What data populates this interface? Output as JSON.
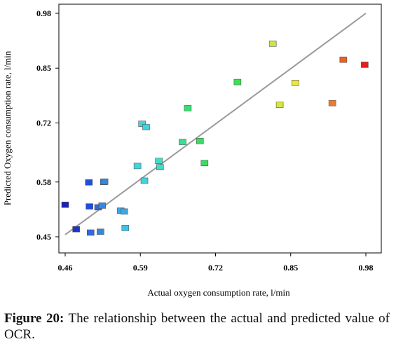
{
  "chart_data": {
    "type": "scatter",
    "xlabel": "Actual oxygen consumption rate, l/min",
    "ylabel": "Predicted  Oxygen consumption rate, l/min",
    "xlim": [
      0.46,
      0.98
    ],
    "ylim": [
      0.45,
      0.98
    ],
    "x_ticks": [
      "0.46",
      "0.59",
      "0.72",
      "0.85",
      "0.98"
    ],
    "y_ticks": [
      "0.45",
      "0.58",
      "0.72",
      "0.85",
      "0.98"
    ],
    "grid": false,
    "fit_line": {
      "x": [
        0.46,
        0.98
      ],
      "y": [
        0.455,
        0.98
      ]
    },
    "points": [
      {
        "x": 0.46,
        "y": 0.526,
        "color": "#1f1fb8"
      },
      {
        "x": 0.479,
        "y": 0.468,
        "color": "#1f35c8"
      },
      {
        "x": 0.501,
        "y": 0.579,
        "color": "#1f4fd8"
      },
      {
        "x": 0.502,
        "y": 0.522,
        "color": "#1f4fd8"
      },
      {
        "x": 0.504,
        "y": 0.46,
        "color": "#2e6ae0"
      },
      {
        "x": 0.517,
        "y": 0.52,
        "color": "#2e6ae0"
      },
      {
        "x": 0.521,
        "y": 0.462,
        "color": "#2e8ae6"
      },
      {
        "x": 0.524,
        "y": 0.524,
        "color": "#2e8ae6"
      },
      {
        "x": 0.527,
        "y": 0.58,
        "color": "#2e8ae6"
      },
      {
        "x": 0.528,
        "y": 0.581,
        "color": "#2e8ae6"
      },
      {
        "x": 0.556,
        "y": 0.512,
        "color": "#39a9e8"
      },
      {
        "x": 0.562,
        "y": 0.51,
        "color": "#39a9e8"
      },
      {
        "x": 0.564,
        "y": 0.471,
        "color": "#39c4e8"
      },
      {
        "x": 0.585,
        "y": 0.618,
        "color": "#3cd6e0"
      },
      {
        "x": 0.593,
        "y": 0.718,
        "color": "#3cd6e0"
      },
      {
        "x": 0.597,
        "y": 0.583,
        "color": "#3cd6e0"
      },
      {
        "x": 0.6,
        "y": 0.71,
        "color": "#3cd6e0"
      },
      {
        "x": 0.622,
        "y": 0.63,
        "color": "#3ce0c8"
      },
      {
        "x": 0.624,
        "y": 0.615,
        "color": "#3ce0c8"
      },
      {
        "x": 0.663,
        "y": 0.675,
        "color": "#35e090"
      },
      {
        "x": 0.672,
        "y": 0.755,
        "color": "#35e070"
      },
      {
        "x": 0.693,
        "y": 0.677,
        "color": "#35e060"
      },
      {
        "x": 0.701,
        "y": 0.625,
        "color": "#35e060"
      },
      {
        "x": 0.758,
        "y": 0.817,
        "color": "#3ce050"
      },
      {
        "x": 0.819,
        "y": 0.908,
        "color": "#c8e840"
      },
      {
        "x": 0.831,
        "y": 0.763,
        "color": "#d6e840"
      },
      {
        "x": 0.858,
        "y": 0.815,
        "color": "#e8e840"
      },
      {
        "x": 0.922,
        "y": 0.767,
        "color": "#f07a2a"
      },
      {
        "x": 0.941,
        "y": 0.87,
        "color": "#f06020"
      },
      {
        "x": 0.978,
        "y": 0.858,
        "color": "#e61e1e"
      }
    ]
  },
  "caption": {
    "label": "Figure 20:",
    "text": " The relationship between the actual and predicted value of OCR."
  }
}
